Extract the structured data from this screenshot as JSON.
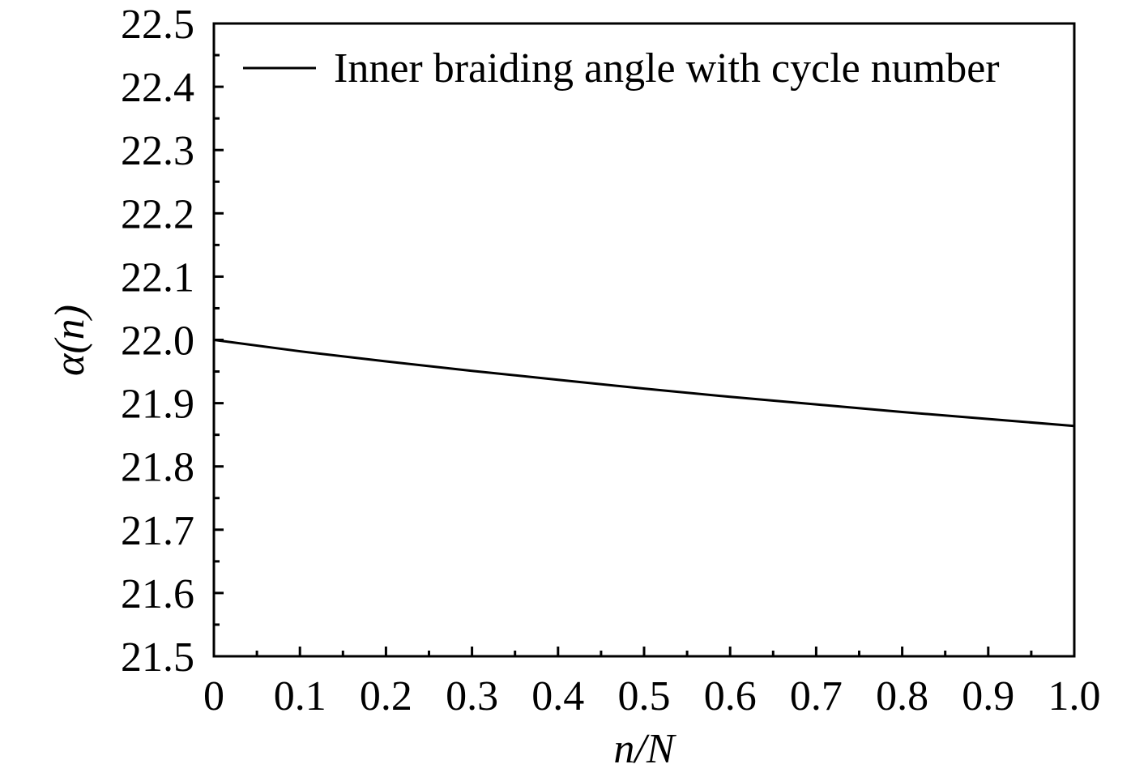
{
  "chart_data": {
    "type": "line",
    "title": "",
    "xlabel": "n/N",
    "ylabel": "α(n)",
    "xlim": [
      0,
      1.0
    ],
    "ylim": [
      21.5,
      22.5
    ],
    "x_ticks": [
      "0",
      "0.1",
      "0.2",
      "0.3",
      "0.4",
      "0.5",
      "0.6",
      "0.7",
      "0.8",
      "0.9",
      "1.0"
    ],
    "y_ticks": [
      "21.5",
      "21.6",
      "21.7",
      "21.8",
      "21.9",
      "22.0",
      "22.1",
      "22.2",
      "22.3",
      "22.4",
      "22.5"
    ],
    "grid": false,
    "legend_position": "top-right",
    "series": [
      {
        "name": "Inner braiding angle with cycle number",
        "color": "#000000",
        "x": [
          0,
          0.1,
          0.2,
          0.3,
          0.4,
          0.5,
          0.6,
          0.7,
          0.8,
          0.9,
          1.0
        ],
        "y": [
          22.0,
          21.982,
          21.966,
          21.951,
          21.937,
          21.923,
          21.91,
          21.898,
          21.886,
          21.875,
          21.864
        ]
      }
    ]
  }
}
